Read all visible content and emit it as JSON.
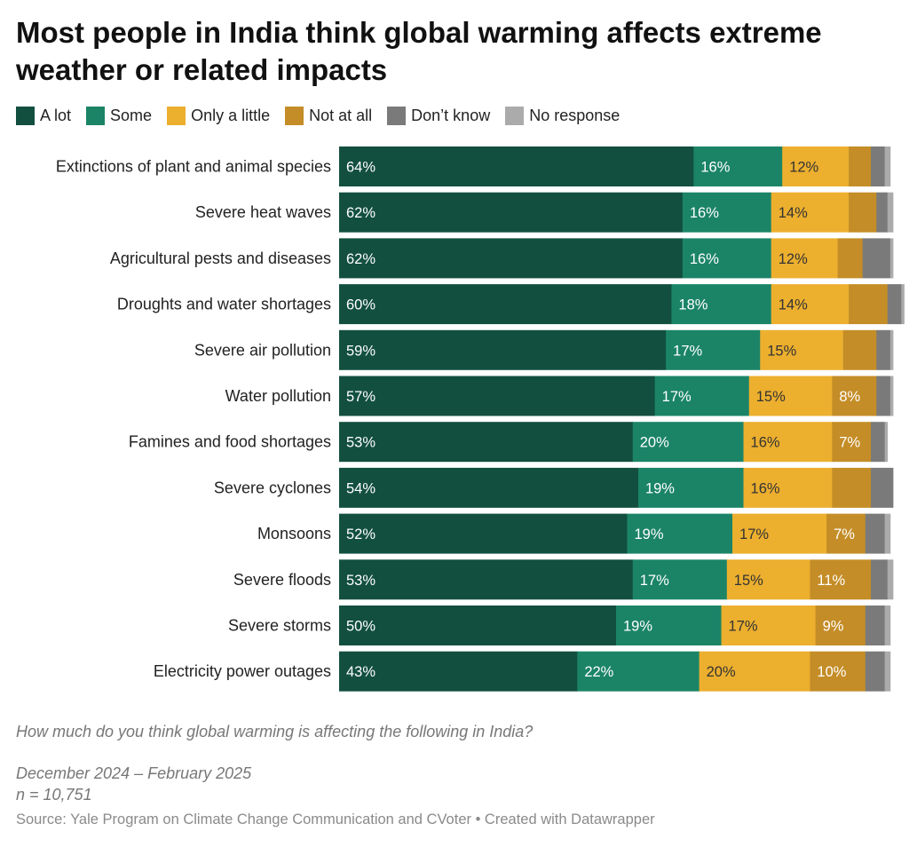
{
  "chart_data": {
    "type": "bar",
    "orientation": "horizontal",
    "stacked": true,
    "title": "Most people in India think global warming affects extreme weather or related impacts",
    "categories": [
      "Extinctions of plant and animal species",
      "Severe heat waves",
      "Agricultural pests and diseases",
      "Droughts and water shortages",
      "Severe air pollution",
      "Water pollution",
      "Famines and food shortages",
      "Severe cyclones",
      "Monsoons",
      "Severe floods",
      "Severe storms",
      "Electricity power outages"
    ],
    "series": [
      {
        "name": "A lot",
        "color": "#124f3f",
        "label_color": "#ffffff",
        "values": [
          64,
          62,
          62,
          60,
          59,
          57,
          53,
          54,
          52,
          53,
          50,
          43
        ]
      },
      {
        "name": "Some",
        "color": "#1b8467",
        "label_color": "#ffffff",
        "values": [
          16,
          16,
          16,
          18,
          17,
          17,
          20,
          19,
          19,
          17,
          19,
          22
        ]
      },
      {
        "name": "Only a little",
        "color": "#ecaf2e",
        "label_color": "#333333",
        "values": [
          12,
          14,
          12,
          14,
          15,
          15,
          16,
          16,
          17,
          15,
          17,
          20
        ]
      },
      {
        "name": "Not at all",
        "color": "#c48d27",
        "label_color": "#ffffff",
        "values": [
          4,
          5,
          4.5,
          7,
          6,
          8,
          7,
          7,
          7,
          11,
          9,
          10
        ]
      },
      {
        "name": "Don’t know",
        "color": "#7a7a7a",
        "label_color": "#ffffff",
        "values": [
          2.5,
          2,
          5,
          2.5,
          2.5,
          2.5,
          2.5,
          4,
          3.5,
          3,
          3.5,
          3.5
        ]
      },
      {
        "name": "No response",
        "color": "#ababab",
        "label_color": "#333333",
        "values": [
          1,
          1,
          0.5,
          0.5,
          0.5,
          0.5,
          0.5,
          0,
          1,
          1,
          1,
          1
        ]
      }
    ],
    "data_labels": [
      [
        "64%",
        "16%",
        "12%",
        "",
        "",
        ""
      ],
      [
        "62%",
        "16%",
        "14%",
        "",
        "",
        ""
      ],
      [
        "62%",
        "16%",
        "12%",
        "",
        "",
        ""
      ],
      [
        "60%",
        "18%",
        "14%",
        "",
        "",
        ""
      ],
      [
        "59%",
        "17%",
        "15%",
        "",
        "",
        ""
      ],
      [
        "57%",
        "17%",
        "15%",
        "8%",
        "",
        ""
      ],
      [
        "53%",
        "20%",
        "16%",
        "7%",
        "",
        ""
      ],
      [
        "54%",
        "19%",
        "16%",
        "",
        "",
        ""
      ],
      [
        "52%",
        "19%",
        "17%",
        "7%",
        "",
        ""
      ],
      [
        "53%",
        "17%",
        "15%",
        "11%",
        "",
        ""
      ],
      [
        "50%",
        "19%",
        "17%",
        "9%",
        "",
        ""
      ],
      [
        "43%",
        "22%",
        "20%",
        "10%",
        "",
        ""
      ]
    ],
    "xlim": [
      0,
      100
    ],
    "grid": false,
    "legend_position": "top"
  },
  "footer": {
    "question": "How much do you think global warming is affecting the following in India?",
    "dates": "December 2024 – February 2025",
    "sample": "n = 10,751",
    "source": "Source: Yale Program on Climate Change Communication and CVoter • Created with Datawrapper"
  }
}
